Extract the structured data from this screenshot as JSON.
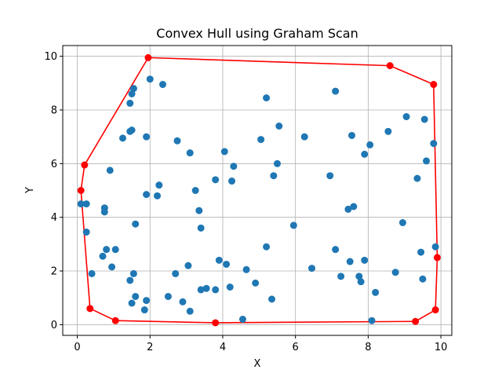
{
  "chart_data": {
    "type": "scatter",
    "title": "Convex Hull using Graham Scan",
    "xlabel": "X",
    "ylabel": "Y",
    "xlim": [
      -0.4,
      10.3
    ],
    "ylim": [
      -0.4,
      10.4
    ],
    "xticks": [
      0,
      2,
      4,
      6,
      8,
      10
    ],
    "yticks": [
      0,
      2,
      4,
      6,
      8,
      10
    ],
    "grid": true,
    "colors": {
      "points": "#1f77b4",
      "hull": "#ff0000",
      "grid": "#b0b0b0",
      "axes": "#000000"
    },
    "series": [
      {
        "type": "scatter",
        "points": [
          [
            0.1,
            4.5
          ],
          [
            0.25,
            4.5
          ],
          [
            0.25,
            3.45
          ],
          [
            0.4,
            1.9
          ],
          [
            0.7,
            2.55
          ],
          [
            0.75,
            4.35
          ],
          [
            0.75,
            4.2
          ],
          [
            0.8,
            2.8
          ],
          [
            0.9,
            5.75
          ],
          [
            0.95,
            2.15
          ],
          [
            1.05,
            2.8
          ],
          [
            1.25,
            6.95
          ],
          [
            1.45,
            8.25
          ],
          [
            1.45,
            7.2
          ],
          [
            1.5,
            7.25
          ],
          [
            1.5,
            8.6
          ],
          [
            1.55,
            8.8
          ],
          [
            1.6,
            3.75
          ],
          [
            1.45,
            1.65
          ],
          [
            1.5,
            0.8
          ],
          [
            1.55,
            1.9
          ],
          [
            1.6,
            1.05
          ],
          [
            1.85,
            0.55
          ],
          [
            1.9,
            0.9
          ],
          [
            1.9,
            7.0
          ],
          [
            1.9,
            4.85
          ],
          [
            2.0,
            9.15
          ],
          [
            2.2,
            4.8
          ],
          [
            2.25,
            5.2
          ],
          [
            2.35,
            8.95
          ],
          [
            2.5,
            1.05
          ],
          [
            2.7,
            1.9
          ],
          [
            2.75,
            6.85
          ],
          [
            2.9,
            0.85
          ],
          [
            3.05,
            2.2
          ],
          [
            3.1,
            6.4
          ],
          [
            3.1,
            0.5
          ],
          [
            3.25,
            5.0
          ],
          [
            3.35,
            4.25
          ],
          [
            3.4,
            3.6
          ],
          [
            3.4,
            1.3
          ],
          [
            3.55,
            1.35
          ],
          [
            3.8,
            1.3
          ],
          [
            3.8,
            5.4
          ],
          [
            3.9,
            2.4
          ],
          [
            4.05,
            6.45
          ],
          [
            4.1,
            2.25
          ],
          [
            4.2,
            1.4
          ],
          [
            4.25,
            5.35
          ],
          [
            4.3,
            5.9
          ],
          [
            4.55,
            0.2
          ],
          [
            4.65,
            2.05
          ],
          [
            4.9,
            1.55
          ],
          [
            5.05,
            6.9
          ],
          [
            5.2,
            8.45
          ],
          [
            5.2,
            2.9
          ],
          [
            5.35,
            0.95
          ],
          [
            5.4,
            5.55
          ],
          [
            5.5,
            6.0
          ],
          [
            5.55,
            7.4
          ],
          [
            5.95,
            3.7
          ],
          [
            6.25,
            7.0
          ],
          [
            6.45,
            2.1
          ],
          [
            6.95,
            5.55
          ],
          [
            7.1,
            8.7
          ],
          [
            7.1,
            2.8
          ],
          [
            7.25,
            1.8
          ],
          [
            7.45,
            4.3
          ],
          [
            7.5,
            2.35
          ],
          [
            7.55,
            7.05
          ],
          [
            7.6,
            4.4
          ],
          [
            7.75,
            1.8
          ],
          [
            7.8,
            1.6
          ],
          [
            7.9,
            6.35
          ],
          [
            7.9,
            2.4
          ],
          [
            8.05,
            6.7
          ],
          [
            8.1,
            0.15
          ],
          [
            8.2,
            1.2
          ],
          [
            8.55,
            7.2
          ],
          [
            8.75,
            1.95
          ],
          [
            8.95,
            3.8
          ],
          [
            9.05,
            7.75
          ],
          [
            9.35,
            5.45
          ],
          [
            9.45,
            2.7
          ],
          [
            9.5,
            1.7
          ],
          [
            9.55,
            7.65
          ],
          [
            9.6,
            6.1
          ],
          [
            9.8,
            6.75
          ],
          [
            9.85,
            2.9
          ]
        ]
      },
      {
        "type": "line",
        "closed": true,
        "points": [
          [
            0.1,
            5.0
          ],
          [
            0.2,
            5.95
          ],
          [
            1.95,
            9.95
          ],
          [
            8.6,
            9.65
          ],
          [
            9.8,
            8.95
          ],
          [
            9.9,
            2.5
          ],
          [
            9.85,
            0.55
          ],
          [
            9.3,
            0.12
          ],
          [
            3.8,
            0.07
          ],
          [
            1.05,
            0.15
          ],
          [
            0.35,
            0.6
          ]
        ]
      }
    ]
  }
}
